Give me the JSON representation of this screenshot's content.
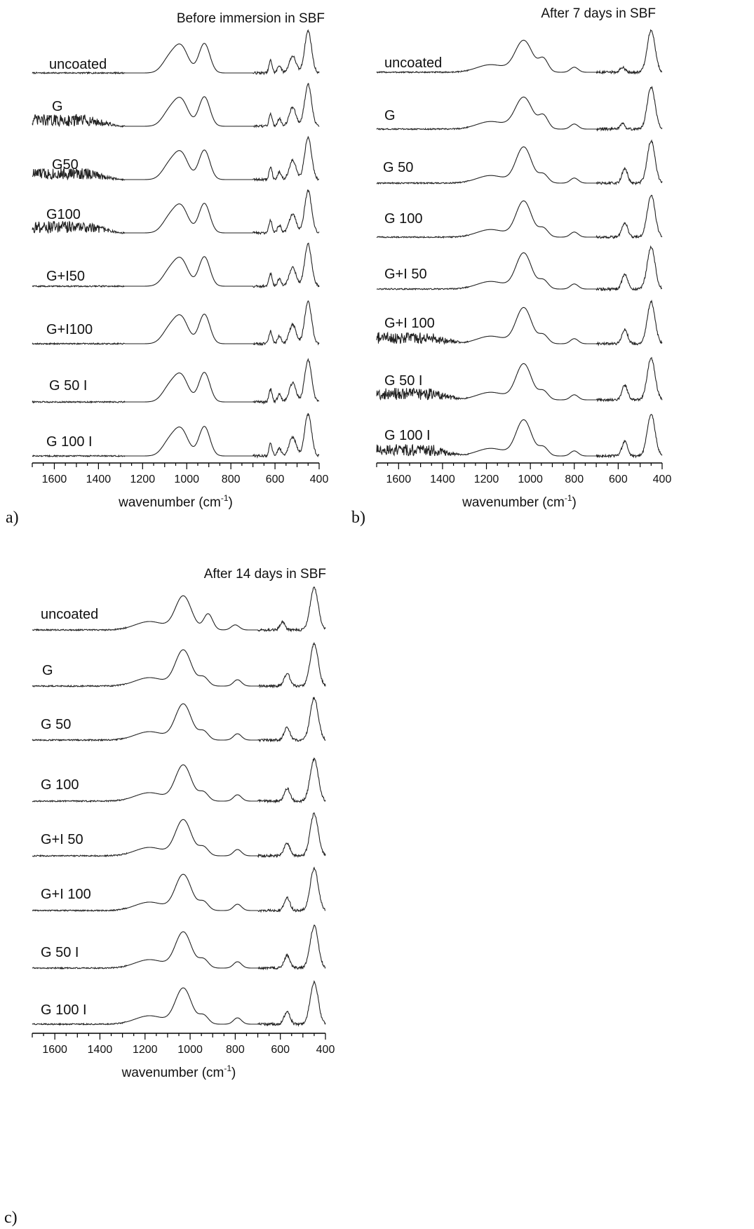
{
  "chart_data": [
    {
      "panel": "a)",
      "type": "line",
      "title": "Before immersion in SBF",
      "xlabel": "wavenumber (cm",
      "xlabel_sup": "-1",
      "xlabel_close": ")",
      "xlim": [
        1700,
        400
      ],
      "x_reversed": true,
      "xticks": [
        1600,
        1400,
        1200,
        1000,
        800,
        600,
        400
      ],
      "y_axis": "none",
      "trace_style": "stacked vertically offset spectra",
      "noise_region": "1300-1700 cm-1 in G, G50, G100",
      "series": [
        {
          "name": "uncoated",
          "noisy": false,
          "peaks": [
            [
              1080,
              0.32,
              45
            ],
            [
              1025,
              0.6,
              45
            ],
            [
              920,
              0.7,
              35
            ],
            [
              620,
              0.3,
              10
            ],
            [
              580,
              0.18,
              12
            ],
            [
              520,
              0.4,
              22
            ],
            [
              450,
              1.0,
              22
            ]
          ]
        },
        {
          "name": "G",
          "noisy": true,
          "peaks": [
            [
              1080,
              0.32,
              45
            ],
            [
              1025,
              0.6,
              45
            ],
            [
              920,
              0.7,
              35
            ],
            [
              620,
              0.3,
              10
            ],
            [
              580,
              0.18,
              12
            ],
            [
              520,
              0.45,
              22
            ],
            [
              450,
              1.0,
              22
            ]
          ]
        },
        {
          "name": "G50",
          "noisy": true,
          "peaks": [
            [
              1080,
              0.32,
              45
            ],
            [
              1025,
              0.6,
              45
            ],
            [
              920,
              0.7,
              35
            ],
            [
              620,
              0.3,
              10
            ],
            [
              580,
              0.18,
              12
            ],
            [
              520,
              0.45,
              22
            ],
            [
              450,
              1.0,
              22
            ]
          ]
        },
        {
          "name": "G100",
          "noisy": true,
          "peaks": [
            [
              1080,
              0.32,
              45
            ],
            [
              1025,
              0.6,
              45
            ],
            [
              920,
              0.7,
              35
            ],
            [
              620,
              0.3,
              10
            ],
            [
              580,
              0.18,
              12
            ],
            [
              520,
              0.45,
              22
            ],
            [
              450,
              1.0,
              22
            ]
          ]
        },
        {
          "name": "G+I50",
          "noisy": false,
          "peaks": [
            [
              1080,
              0.32,
              45
            ],
            [
              1025,
              0.6,
              45
            ],
            [
              920,
              0.7,
              35
            ],
            [
              620,
              0.3,
              10
            ],
            [
              580,
              0.18,
              12
            ],
            [
              520,
              0.45,
              22
            ],
            [
              450,
              1.0,
              22
            ]
          ]
        },
        {
          "name": "G+I100",
          "noisy": false,
          "peaks": [
            [
              1080,
              0.32,
              45
            ],
            [
              1025,
              0.6,
              45
            ],
            [
              920,
              0.7,
              35
            ],
            [
              620,
              0.3,
              10
            ],
            [
              580,
              0.18,
              12
            ],
            [
              520,
              0.45,
              22
            ],
            [
              450,
              1.0,
              22
            ]
          ]
        },
        {
          "name": "G 50 I",
          "noisy": false,
          "peaks": [
            [
              1080,
              0.32,
              45
            ],
            [
              1025,
              0.6,
              45
            ],
            [
              920,
              0.7,
              35
            ],
            [
              620,
              0.3,
              10
            ],
            [
              580,
              0.18,
              12
            ],
            [
              520,
              0.45,
              22
            ],
            [
              450,
              1.0,
              22
            ]
          ]
        },
        {
          "name": "G 100 I",
          "noisy": false,
          "peaks": [
            [
              1080,
              0.32,
              45
            ],
            [
              1025,
              0.6,
              45
            ],
            [
              920,
              0.7,
              35
            ],
            [
              620,
              0.3,
              10
            ],
            [
              580,
              0.18,
              12
            ],
            [
              520,
              0.45,
              22
            ],
            [
              450,
              1.0,
              22
            ]
          ]
        }
      ]
    },
    {
      "panel": "b)",
      "type": "line",
      "title": "After 7 days in SBF",
      "xlabel": "wavenumber (cm",
      "xlabel_sup": "-1",
      "xlabel_close": ")",
      "xlim": [
        1700,
        400
      ],
      "x_reversed": true,
      "xticks": [
        1600,
        1400,
        1200,
        1000,
        800,
        600,
        400
      ],
      "y_axis": "none",
      "trace_style": "stacked vertically offset spectra",
      "noise_region": "1300-1700 cm-1 in G+I 100, G 50 I, G 100 I",
      "series": [
        {
          "name": "uncoated",
          "noisy": false,
          "peaks": [
            [
              1180,
              0.18,
              90
            ],
            [
              1030,
              0.75,
              55
            ],
            [
              940,
              0.3,
              30
            ],
            [
              800,
              0.12,
              25
            ],
            [
              580,
              0.12,
              15
            ],
            [
              450,
              1.0,
              25
            ]
          ]
        },
        {
          "name": "G",
          "noisy": false,
          "peaks": [
            [
              1180,
              0.18,
              90
            ],
            [
              1030,
              0.75,
              55
            ],
            [
              940,
              0.3,
              30
            ],
            [
              800,
              0.12,
              25
            ],
            [
              580,
              0.12,
              15
            ],
            [
              450,
              1.0,
              25
            ]
          ]
        },
        {
          "name": "G 50",
          "noisy": false,
          "peaks": [
            [
              1180,
              0.18,
              90
            ],
            [
              1030,
              0.85,
              50
            ],
            [
              940,
              0.2,
              30
            ],
            [
              800,
              0.12,
              25
            ],
            [
              570,
              0.35,
              18
            ],
            [
              450,
              1.0,
              25
            ]
          ]
        },
        {
          "name": "G 100",
          "noisy": false,
          "peaks": [
            [
              1180,
              0.18,
              90
            ],
            [
              1030,
              0.85,
              50
            ],
            [
              940,
              0.2,
              30
            ],
            [
              800,
              0.12,
              25
            ],
            [
              570,
              0.35,
              18
            ],
            [
              450,
              1.0,
              25
            ]
          ]
        },
        {
          "name": "G+I 50",
          "noisy": false,
          "peaks": [
            [
              1180,
              0.18,
              90
            ],
            [
              1030,
              0.85,
              50
            ],
            [
              940,
              0.2,
              30
            ],
            [
              800,
              0.12,
              25
            ],
            [
              570,
              0.35,
              18
            ],
            [
              450,
              1.0,
              25
            ]
          ]
        },
        {
          "name": "G+I 100",
          "noisy": true,
          "peaks": [
            [
              1180,
              0.18,
              90
            ],
            [
              1030,
              0.85,
              50
            ],
            [
              940,
              0.2,
              30
            ],
            [
              800,
              0.12,
              25
            ],
            [
              570,
              0.35,
              18
            ],
            [
              450,
              1.0,
              25
            ]
          ]
        },
        {
          "name": "G 50 I",
          "noisy": true,
          "peaks": [
            [
              1180,
              0.18,
              90
            ],
            [
              1030,
              0.85,
              50
            ],
            [
              940,
              0.2,
              30
            ],
            [
              800,
              0.12,
              25
            ],
            [
              570,
              0.35,
              18
            ],
            [
              450,
              1.0,
              25
            ]
          ]
        },
        {
          "name": "G 100 I",
          "noisy": true,
          "peaks": [
            [
              1180,
              0.18,
              90
            ],
            [
              1030,
              0.85,
              50
            ],
            [
              940,
              0.2,
              30
            ],
            [
              800,
              0.12,
              25
            ],
            [
              570,
              0.35,
              18
            ],
            [
              450,
              1.0,
              25
            ]
          ]
        }
      ]
    },
    {
      "panel": "c)",
      "type": "line",
      "title": "After 14 days in SBF",
      "xlabel": "wavenumber (cm",
      "xlabel_sup": "-1",
      "xlabel_close": ")",
      "xlim": [
        1700,
        400
      ],
      "x_reversed": true,
      "xticks": [
        1600,
        1400,
        1200,
        1000,
        800,
        600,
        400
      ],
      "y_axis": "none",
      "trace_style": "stacked vertically offset spectra",
      "noise_region": "1300-1700 cm-1, low amplitude",
      "series": [
        {
          "name": "uncoated",
          "noisy": false,
          "peaks": [
            [
              1180,
              0.2,
              90
            ],
            [
              1030,
              0.8,
              50
            ],
            [
              920,
              0.38,
              28
            ],
            [
              800,
              0.12,
              25
            ],
            [
              590,
              0.2,
              15
            ],
            [
              450,
              1.0,
              25
            ]
          ]
        },
        {
          "name": "G",
          "noisy": false,
          "peaks": [
            [
              1180,
              0.2,
              90
            ],
            [
              1030,
              0.85,
              50
            ],
            [
              940,
              0.2,
              30
            ],
            [
              790,
              0.15,
              25
            ],
            [
              570,
              0.3,
              18
            ],
            [
              450,
              1.0,
              25
            ]
          ]
        },
        {
          "name": "G 50",
          "noisy": false,
          "peaks": [
            [
              1180,
              0.2,
              90
            ],
            [
              1030,
              0.85,
              50
            ],
            [
              940,
              0.2,
              30
            ],
            [
              790,
              0.15,
              25
            ],
            [
              570,
              0.3,
              18
            ],
            [
              450,
              1.0,
              25
            ]
          ]
        },
        {
          "name": "G 100",
          "noisy": false,
          "peaks": [
            [
              1180,
              0.2,
              90
            ],
            [
              1030,
              0.85,
              50
            ],
            [
              940,
              0.2,
              30
            ],
            [
              790,
              0.15,
              25
            ],
            [
              570,
              0.3,
              18
            ],
            [
              450,
              1.0,
              25
            ]
          ]
        },
        {
          "name": "G+I 50",
          "noisy": false,
          "peaks": [
            [
              1180,
              0.2,
              90
            ],
            [
              1030,
              0.85,
              50
            ],
            [
              940,
              0.2,
              30
            ],
            [
              790,
              0.15,
              25
            ],
            [
              570,
              0.3,
              18
            ],
            [
              450,
              1.0,
              25
            ]
          ]
        },
        {
          "name": "G+I 100",
          "noisy": false,
          "peaks": [
            [
              1180,
              0.2,
              90
            ],
            [
              1030,
              0.85,
              50
            ],
            [
              940,
              0.2,
              30
            ],
            [
              790,
              0.15,
              25
            ],
            [
              570,
              0.3,
              18
            ],
            [
              450,
              1.0,
              25
            ]
          ]
        },
        {
          "name": "G 50 I",
          "noisy": false,
          "peaks": [
            [
              1180,
              0.2,
              90
            ],
            [
              1030,
              0.85,
              50
            ],
            [
              940,
              0.2,
              30
            ],
            [
              790,
              0.15,
              25
            ],
            [
              570,
              0.3,
              18
            ],
            [
              450,
              1.0,
              25
            ]
          ]
        },
        {
          "name": "G 100 I",
          "noisy": false,
          "peaks": [
            [
              1180,
              0.2,
              90
            ],
            [
              1030,
              0.85,
              50
            ],
            [
              940,
              0.2,
              30
            ],
            [
              790,
              0.15,
              25
            ],
            [
              570,
              0.3,
              18
            ],
            [
              450,
              1.0,
              25
            ]
          ]
        }
      ]
    }
  ]
}
